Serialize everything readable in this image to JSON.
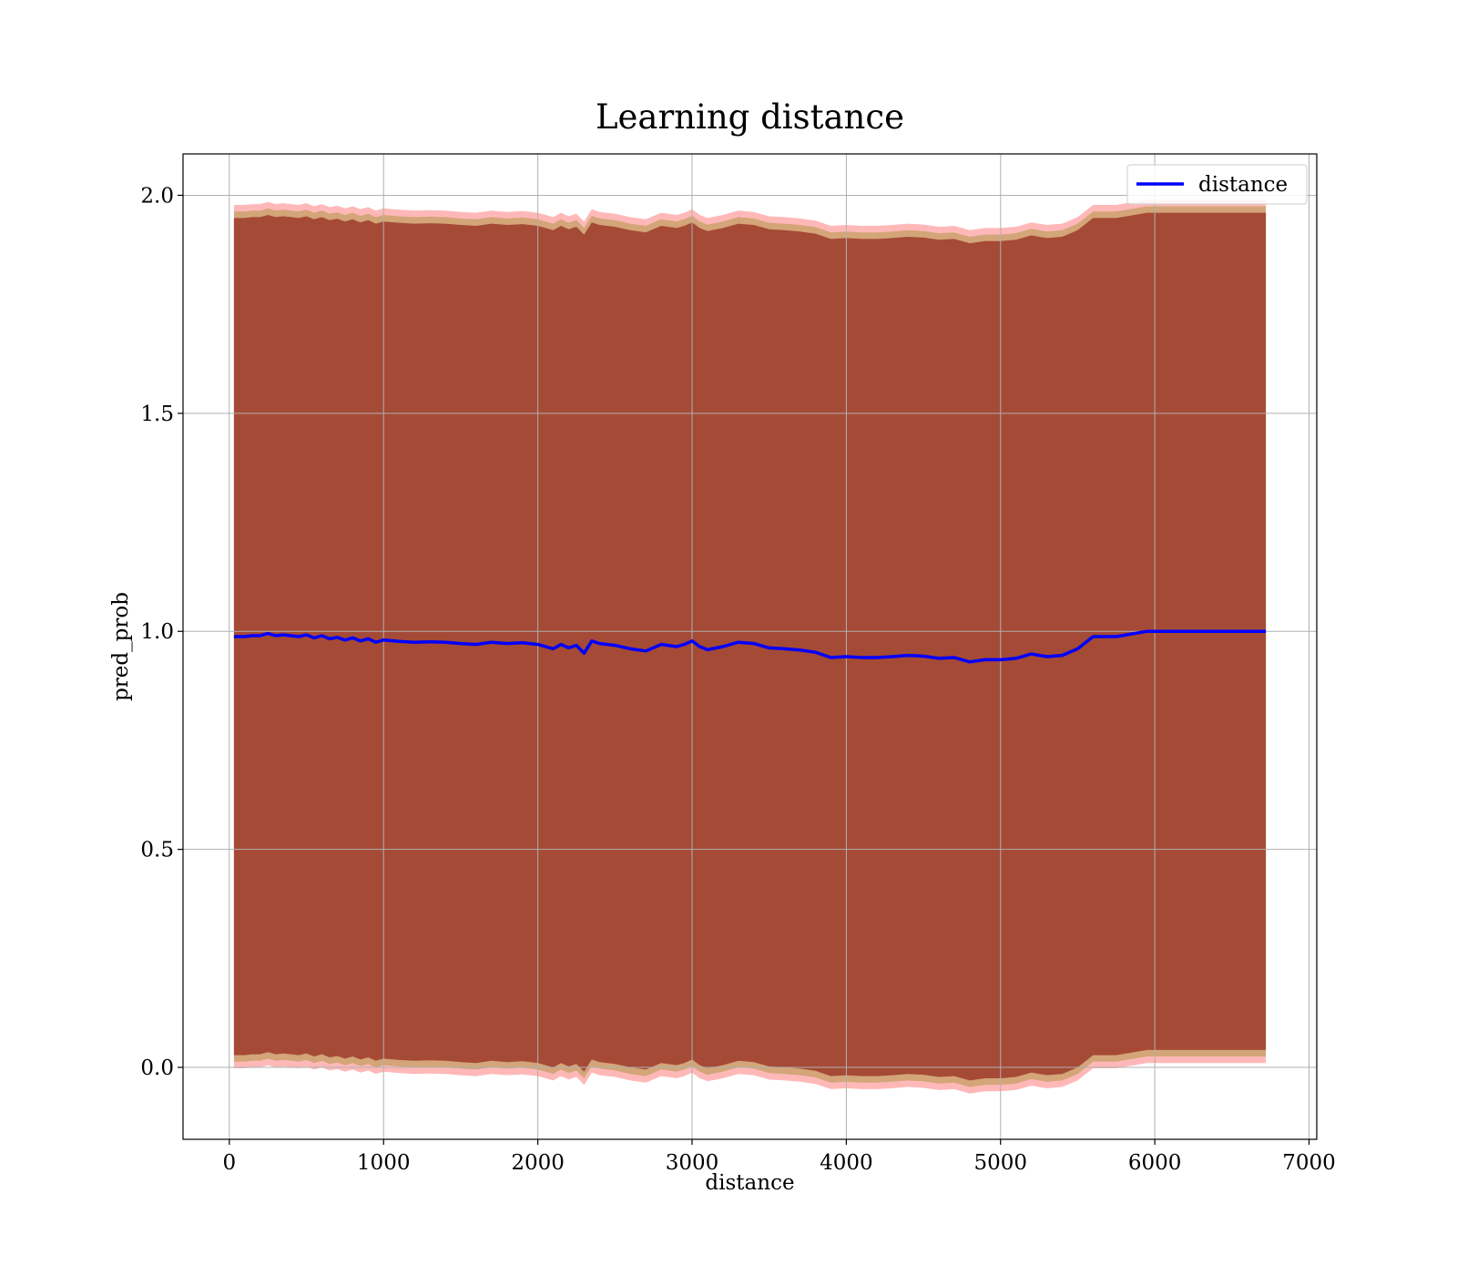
{
  "chart_data": {
    "type": "line",
    "title": "Learning distance",
    "xlabel": "distance",
    "ylabel": "pred_prob",
    "xlim": [
      -300,
      7050
    ],
    "ylim": [
      -0.165,
      2.095
    ],
    "xticks": [
      0,
      1000,
      2000,
      3000,
      4000,
      5000,
      6000,
      7000
    ],
    "xtick_labels": [
      "0",
      "1000",
      "2000",
      "3000",
      "4000",
      "5000",
      "6000",
      "7000"
    ],
    "yticks": [
      0.0,
      0.5,
      1.0,
      1.5,
      2.0
    ],
    "ytick_labels": [
      "0.0",
      "0.5",
      "1.0",
      "1.5",
      "2.0"
    ],
    "grid": true,
    "legend_position": "top-right",
    "colors": {
      "line": "#0000ff",
      "band_outer": "#ff0000",
      "band_inner": "#800000",
      "band_mid": "#808000",
      "grid": "#b0b0b0"
    },
    "series": [
      {
        "name": "distance",
        "x": [
          30,
          100,
          150,
          200,
          250,
          300,
          350,
          400,
          450,
          500,
          550,
          600,
          650,
          700,
          750,
          800,
          850,
          900,
          950,
          1000,
          1100,
          1200,
          1300,
          1400,
          1500,
          1600,
          1700,
          1800,
          1900,
          2000,
          2050,
          2100,
          2150,
          2200,
          2250,
          2300,
          2350,
          2400,
          2500,
          2600,
          2700,
          2800,
          2900,
          2950,
          3000,
          3050,
          3100,
          3200,
          3300,
          3400,
          3500,
          3600,
          3700,
          3800,
          3900,
          4000,
          4100,
          4200,
          4300,
          4400,
          4500,
          4600,
          4700,
          4800,
          4900,
          5000,
          5100,
          5200,
          5300,
          5400,
          5500,
          5600,
          5750,
          5950,
          6100,
          6300,
          6500,
          6720
        ],
        "y": [
          0.988,
          0.988,
          0.99,
          0.99,
          0.995,
          0.99,
          0.992,
          0.99,
          0.988,
          0.992,
          0.985,
          0.99,
          0.983,
          0.986,
          0.98,
          0.985,
          0.978,
          0.983,
          0.975,
          0.98,
          0.977,
          0.975,
          0.976,
          0.975,
          0.972,
          0.97,
          0.975,
          0.972,
          0.974,
          0.97,
          0.965,
          0.96,
          0.97,
          0.962,
          0.968,
          0.95,
          0.978,
          0.972,
          0.968,
          0.96,
          0.955,
          0.97,
          0.965,
          0.97,
          0.978,
          0.965,
          0.958,
          0.965,
          0.975,
          0.972,
          0.962,
          0.96,
          0.957,
          0.952,
          0.94,
          0.942,
          0.94,
          0.94,
          0.942,
          0.945,
          0.943,
          0.938,
          0.94,
          0.93,
          0.935,
          0.935,
          0.938,
          0.948,
          0.942,
          0.945,
          0.96,
          0.988,
          0.988,
          1.0,
          1.0,
          1.0,
          1.0,
          1.0
        ]
      }
    ]
  }
}
